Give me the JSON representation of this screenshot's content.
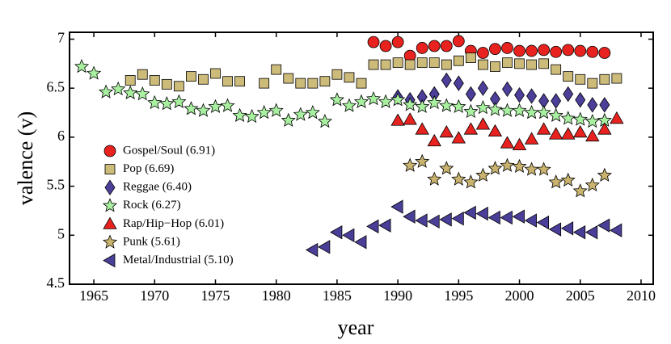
{
  "chart_data": {
    "type": "scatter",
    "xlabel": "year",
    "ylabel": "valence (v)",
    "xlim": [
      1963,
      2011
    ],
    "ylim": [
      4.5,
      7.07
    ],
    "xticks": [
      1965,
      1970,
      1975,
      1980,
      1985,
      1990,
      1995,
      2000,
      2005,
      2010
    ],
    "yticks": [
      4.5,
      5,
      5.5,
      6,
      6.5,
      7
    ],
    "legend": "left",
    "series": [
      {
        "name": "Gospel/Soul (6.91)",
        "color": "#e8231f",
        "marker": "circle",
        "x": [
          1988,
          1989,
          1990,
          1991,
          1992,
          1993,
          1994,
          1995,
          1996,
          1997,
          1998,
          1999,
          2000,
          2001,
          2002,
          2003,
          2004,
          2005,
          2006,
          2007
        ],
        "values": [
          6.97,
          6.93,
          6.97,
          6.83,
          6.91,
          6.93,
          6.93,
          6.98,
          6.88,
          6.86,
          6.9,
          6.91,
          6.88,
          6.88,
          6.89,
          6.87,
          6.89,
          6.88,
          6.87,
          6.86
        ]
      },
      {
        "name": "Pop (6.69)",
        "color": "#cdbb7a",
        "marker": "square",
        "x": [
          1968,
          1969,
          1970,
          1971,
          1972,
          1973,
          1974,
          1975,
          1976,
          1977,
          1979,
          1980,
          1981,
          1982,
          1983,
          1984,
          1985,
          1986,
          1987,
          1988,
          1989,
          1990,
          1991,
          1992,
          1993,
          1994,
          1995,
          1996,
          1997,
          1998,
          1999,
          2000,
          2001,
          2002,
          2003,
          2004,
          2005,
          2006,
          2007,
          2008
        ],
        "values": [
          6.58,
          6.64,
          6.58,
          6.54,
          6.52,
          6.62,
          6.59,
          6.65,
          6.57,
          6.57,
          6.55,
          6.69,
          6.6,
          6.55,
          6.55,
          6.57,
          6.64,
          6.61,
          6.55,
          6.74,
          6.74,
          6.76,
          6.74,
          6.76,
          6.76,
          6.74,
          6.78,
          6.81,
          6.74,
          6.72,
          6.76,
          6.75,
          6.74,
          6.75,
          6.69,
          6.62,
          6.59,
          6.55,
          6.59,
          6.6
        ]
      },
      {
        "name": "Reggae (6.40)",
        "color": "#4b3f9a",
        "marker": "diamond",
        "x": [
          1990,
          1991,
          1992,
          1993,
          1994,
          1995,
          1996,
          1997,
          1998,
          1999,
          2000,
          2001,
          2002,
          2003,
          2004,
          2005,
          2006,
          2007
        ],
        "values": [
          6.41,
          6.38,
          6.41,
          6.44,
          6.58,
          6.55,
          6.44,
          6.5,
          6.39,
          6.49,
          6.43,
          6.42,
          6.37,
          6.37,
          6.44,
          6.38,
          6.33,
          6.33
        ]
      },
      {
        "name": "Rock (6.27)",
        "color": "#a8f0a0",
        "marker": "star",
        "x": [
          1964,
          1965,
          1966,
          1967,
          1968,
          1969,
          1970,
          1971,
          1972,
          1973,
          1974,
          1975,
          1976,
          1977,
          1978,
          1979,
          1980,
          1981,
          1982,
          1983,
          1984,
          1985,
          1986,
          1987,
          1988,
          1989,
          1990,
          1991,
          1992,
          1993,
          1994,
          1995,
          1996,
          1997,
          1998,
          1999,
          2000,
          2001,
          2002,
          2003,
          2004,
          2005,
          2006,
          2007
        ],
        "values": [
          6.72,
          6.65,
          6.46,
          6.49,
          6.45,
          6.44,
          6.35,
          6.34,
          6.36,
          6.29,
          6.27,
          6.31,
          6.32,
          6.22,
          6.21,
          6.25,
          6.27,
          6.17,
          6.23,
          6.25,
          6.16,
          6.38,
          6.32,
          6.36,
          6.39,
          6.36,
          6.38,
          6.33,
          6.31,
          6.35,
          6.32,
          6.31,
          6.26,
          6.3,
          6.28,
          6.27,
          6.27,
          6.25,
          6.25,
          6.22,
          6.19,
          6.18,
          6.16,
          6.17
        ]
      },
      {
        "name": "Rap/Hip−Hop (6.01)",
        "color": "#e8231f",
        "marker": "triangle-up",
        "x": [
          1990,
          1991,
          1992,
          1993,
          1994,
          1995,
          1996,
          1997,
          1998,
          1999,
          2000,
          2001,
          2002,
          2003,
          2004,
          2005,
          2006,
          2007,
          2008
        ],
        "values": [
          6.17,
          6.18,
          6.08,
          5.96,
          6.05,
          5.99,
          6.08,
          6.13,
          6.06,
          5.94,
          5.92,
          5.98,
          6.08,
          6.03,
          6.03,
          6.05,
          6.01,
          6.08,
          6.19
        ]
      },
      {
        "name": "Punk (5.61)",
        "color": "#c9b36e",
        "marker": "star",
        "x": [
          1991,
          1992,
          1993,
          1994,
          1995,
          1996,
          1997,
          1998,
          1999,
          2000,
          2001,
          2002,
          2003,
          2004,
          2005,
          2006,
          2007
        ],
        "values": [
          5.71,
          5.75,
          5.57,
          5.68,
          5.57,
          5.54,
          5.61,
          5.68,
          5.71,
          5.7,
          5.67,
          5.67,
          5.54,
          5.56,
          5.45,
          5.51,
          5.61
        ]
      },
      {
        "name": "Metal/Industrial (5.10)",
        "color": "#4a3f98",
        "marker": "triangle-left",
        "x": [
          1983,
          1984,
          1985,
          1986,
          1987,
          1988,
          1989,
          1990,
          1991,
          1992,
          1993,
          1994,
          1995,
          1996,
          1997,
          1998,
          1999,
          2000,
          2001,
          2002,
          2003,
          2004,
          2005,
          2006,
          2007,
          2008
        ],
        "values": [
          4.85,
          4.88,
          5.03,
          5,
          4.93,
          5.09,
          5.1,
          5.29,
          5.19,
          5.15,
          5.14,
          5.16,
          5.17,
          5.23,
          5.22,
          5.18,
          5.18,
          5.19,
          5.15,
          5.13,
          5.06,
          5.07,
          5.03,
          5.03,
          5.1,
          5.05
        ]
      }
    ]
  }
}
